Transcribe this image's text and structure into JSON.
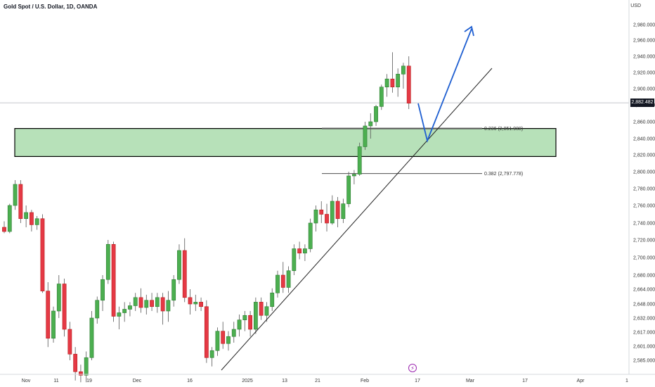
{
  "title": "Gold Spot / U.S. Dollar, 1D, OANDA",
  "currency": "USD",
  "current_price": "2,882.482",
  "event_icon": "lightning-icon",
  "colors": {
    "up": "#26a69a",
    "up_fill": "#4caf50",
    "down": "#ef5350",
    "down_fill": "#e53945",
    "zone_fill": "#b7e1b9",
    "projection": "#1f5fd1",
    "trendline": "#222222",
    "grid": "#e9ecef"
  },
  "chart_data": {
    "type": "candlestick",
    "title": "Gold Spot / U.S. Dollar, 1D, OANDA",
    "price_ticks": [
      "2,980.000",
      "2,960.000",
      "2,940.000",
      "2,920.000",
      "2,900.000",
      "2,880.000",
      "2,860.000",
      "2,840.000",
      "2,820.000",
      "2,800.000",
      "2,780.000",
      "2,760.000",
      "2,740.000",
      "2,720.000",
      "2,700.000",
      "2,680.000",
      "2,664.000",
      "2,648.000",
      "2,632.000",
      "2,617.000",
      "2,601.000",
      "2,585.000"
    ],
    "time_ticks": [
      "Nov",
      "11",
      "19",
      "Dec",
      "16",
      "2025",
      "13",
      "21",
      "Feb",
      "17",
      "Mar",
      "17",
      "Apr",
      "1"
    ],
    "demand_zone": {
      "top": 2851.988,
      "bottom": 2818
    },
    "fib_levels": [
      {
        "label": "0.236 (2,851.988)",
        "price": 2851.988
      },
      {
        "label": "0.382 (2,797.778)",
        "price": 2797.778
      }
    ],
    "candles": [
      [
        2735,
        2742,
        2728,
        2730
      ],
      [
        2730,
        2762,
        2728,
        2760
      ],
      [
        2760,
        2790,
        2755,
        2785
      ],
      [
        2785,
        2790,
        2740,
        2745
      ],
      [
        2745,
        2760,
        2735,
        2752
      ],
      [
        2752,
        2755,
        2730,
        2738
      ],
      [
        2738,
        2748,
        2732,
        2745
      ],
      [
        2745,
        2750,
        2660,
        2662
      ],
      [
        2662,
        2672,
        2600,
        2610
      ],
      [
        2610,
        2645,
        2605,
        2640
      ],
      [
        2640,
        2680,
        2632,
        2670
      ],
      [
        2670,
        2676,
        2612,
        2620
      ],
      [
        2620,
        2628,
        2585,
        2592
      ],
      [
        2592,
        2600,
        2562,
        2572
      ],
      [
        2572,
        2580,
        2560,
        2568
      ],
      [
        2568,
        2595,
        2560,
        2588
      ],
      [
        2588,
        2640,
        2585,
        2632
      ],
      [
        2632,
        2656,
        2626,
        2652
      ],
      [
        2652,
        2680,
        2640,
        2675
      ],
      [
        2675,
        2720,
        2670,
        2715
      ],
      [
        2715,
        2718,
        2628,
        2634
      ],
      [
        2634,
        2645,
        2620,
        2638
      ],
      [
        2638,
        2650,
        2628,
        2642
      ],
      [
        2642,
        2650,
        2634,
        2646
      ],
      [
        2646,
        2660,
        2640,
        2655
      ],
      [
        2655,
        2665,
        2638,
        2644
      ],
      [
        2644,
        2658,
        2636,
        2652
      ],
      [
        2652,
        2660,
        2640,
        2645
      ],
      [
        2645,
        2660,
        2638,
        2655
      ],
      [
        2655,
        2660,
        2625,
        2640
      ],
      [
        2640,
        2662,
        2628,
        2652
      ],
      [
        2652,
        2680,
        2645,
        2675
      ],
      [
        2675,
        2715,
        2670,
        2708
      ],
      [
        2708,
        2722,
        2650,
        2655
      ],
      [
        2655,
        2664,
        2636,
        2648
      ],
      [
        2648,
        2658,
        2640,
        2650
      ],
      [
        2650,
        2655,
        2640,
        2645
      ],
      [
        2645,
        2652,
        2582,
        2588
      ],
      [
        2588,
        2600,
        2578,
        2596
      ],
      [
        2596,
        2622,
        2590,
        2618
      ],
      [
        2618,
        2628,
        2598,
        2604
      ],
      [
        2604,
        2618,
        2596,
        2612
      ],
      [
        2612,
        2628,
        2605,
        2620
      ],
      [
        2620,
        2636,
        2612,
        2630
      ],
      [
        2630,
        2640,
        2618,
        2635
      ],
      [
        2635,
        2640,
        2612,
        2620
      ],
      [
        2620,
        2655,
        2615,
        2650
      ],
      [
        2650,
        2655,
        2630,
        2635
      ],
      [
        2635,
        2650,
        2628,
        2645
      ],
      [
        2645,
        2665,
        2640,
        2660
      ],
      [
        2660,
        2685,
        2655,
        2680
      ],
      [
        2680,
        2695,
        2660,
        2666
      ],
      [
        2666,
        2690,
        2660,
        2685
      ],
      [
        2685,
        2715,
        2680,
        2710
      ],
      [
        2710,
        2718,
        2698,
        2705
      ],
      [
        2705,
        2715,
        2696,
        2710
      ],
      [
        2710,
        2745,
        2706,
        2740
      ],
      [
        2740,
        2760,
        2730,
        2755
      ],
      [
        2755,
        2765,
        2740,
        2750
      ],
      [
        2750,
        2762,
        2730,
        2740
      ],
      [
        2740,
        2772,
        2738,
        2765
      ],
      [
        2765,
        2770,
        2735,
        2745
      ],
      [
        2745,
        2768,
        2740,
        2762
      ],
      [
        2762,
        2800,
        2758,
        2795
      ],
      [
        2795,
        2802,
        2785,
        2797
      ],
      [
        2797,
        2835,
        2795,
        2830
      ],
      [
        2830,
        2860,
        2826,
        2855
      ],
      [
        2855,
        2870,
        2840,
        2860
      ],
      [
        2860,
        2880,
        2855,
        2878
      ],
      [
        2878,
        2905,
        2874,
        2902
      ],
      [
        2902,
        2918,
        2890,
        2912
      ],
      [
        2912,
        2945,
        2895,
        2902
      ],
      [
        2902,
        2925,
        2890,
        2918
      ],
      [
        2918,
        2932,
        2900,
        2928
      ],
      [
        2928,
        2940,
        2875,
        2882
      ]
    ]
  }
}
